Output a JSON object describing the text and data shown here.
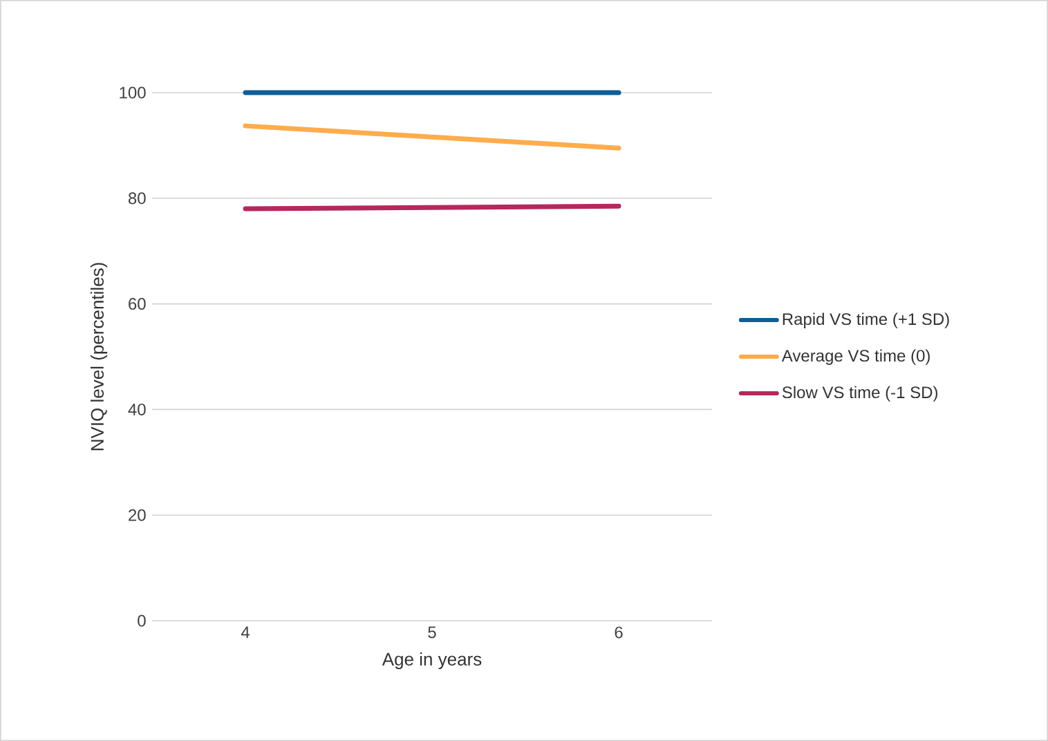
{
  "chart_data": {
    "type": "line",
    "xlabel": "Age in years",
    "ylabel": "NVIQ level (percentiles)",
    "x": [
      4,
      6
    ],
    "series": [
      {
        "name": "Rapid VS time (+1 SD)",
        "color": "#0e5e9a",
        "values": [
          100,
          100
        ]
      },
      {
        "name": "Average VS time (0)",
        "color": "#ffac4c",
        "values": [
          93.7,
          89.5
        ]
      },
      {
        "name": "Slow VS time (-1 SD)",
        "color": "#b5285e",
        "values": [
          78.0,
          78.5
        ]
      }
    ],
    "xlim": [
      3.5,
      6.5
    ],
    "xticks": [
      4,
      5,
      6
    ],
    "ylim": [
      0,
      100
    ],
    "yticks": [
      0,
      20,
      40,
      60,
      80,
      100
    ],
    "grid": "y",
    "legend": "right",
    "marker": "none",
    "line_style": "solid"
  }
}
